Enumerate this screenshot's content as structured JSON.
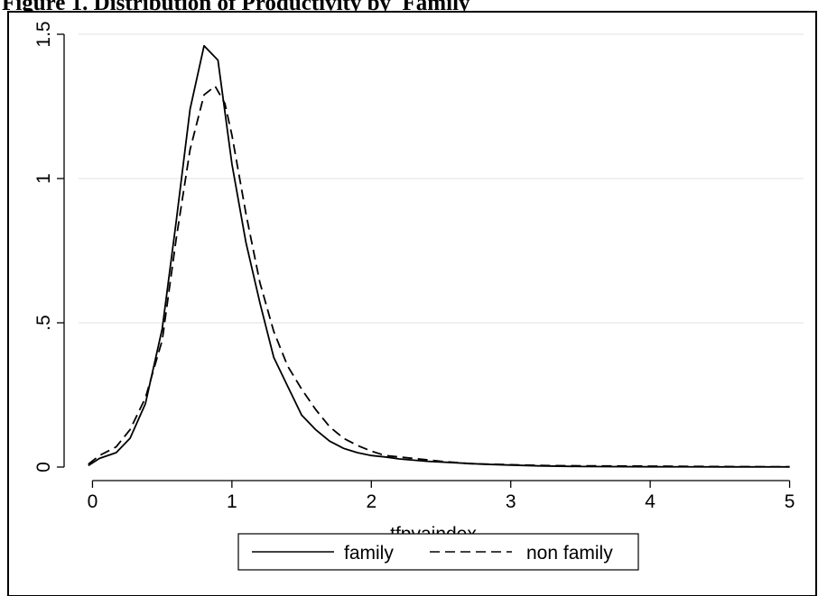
{
  "figure_title": "Figure 1. Distribution of Productivity by  Family",
  "chart_data": {
    "type": "line",
    "title": "",
    "xlabel": "tfpvaindex",
    "ylabel": "",
    "xlim": [
      -0.1,
      5.1
    ],
    "ylim": [
      0,
      1.5
    ],
    "xticks": [
      0,
      1,
      2,
      3,
      4,
      5
    ],
    "xtick_labels": [
      "0",
      "1",
      "2",
      "3",
      "4",
      "5"
    ],
    "yticks": [
      0,
      0.5,
      1,
      1.5
    ],
    "ytick_labels": [
      "0",
      ".5",
      "1",
      "1.5"
    ],
    "grid": true,
    "legend_position": "bottom",
    "series": [
      {
        "name": "family",
        "line_style": "solid",
        "color": "#000000",
        "x": [
          -0.03,
          0.05,
          0.17,
          0.27,
          0.38,
          0.5,
          0.6,
          0.7,
          0.8,
          0.9,
          1.0,
          1.1,
          1.2,
          1.3,
          1.4,
          1.5,
          1.6,
          1.7,
          1.8,
          1.9,
          2.0,
          2.1,
          2.2,
          2.4,
          2.6,
          2.8,
          3.0,
          3.2,
          3.5,
          4.0,
          4.5,
          5.0
        ],
        "y": [
          0.005,
          0.03,
          0.05,
          0.1,
          0.22,
          0.48,
          0.85,
          1.24,
          1.46,
          1.41,
          1.05,
          0.78,
          0.57,
          0.38,
          0.28,
          0.18,
          0.13,
          0.09,
          0.065,
          0.05,
          0.04,
          0.035,
          0.028,
          0.02,
          0.015,
          0.01,
          0.007,
          0.004,
          0.002,
          0.001,
          0.0005,
          0.0005
        ]
      },
      {
        "name": "non family",
        "line_style": "dashed",
        "color": "#000000",
        "x": [
          -0.03,
          0.05,
          0.17,
          0.27,
          0.38,
          0.5,
          0.6,
          0.7,
          0.8,
          0.88,
          0.95,
          1.0,
          1.1,
          1.2,
          1.3,
          1.4,
          1.5,
          1.6,
          1.7,
          1.8,
          1.9,
          2.0,
          2.1,
          2.3,
          2.5,
          2.7,
          3.0,
          3.3,
          3.6,
          4.0,
          4.5,
          5.0
        ],
        "y": [
          0.01,
          0.04,
          0.07,
          0.13,
          0.24,
          0.44,
          0.79,
          1.1,
          1.29,
          1.32,
          1.26,
          1.15,
          0.88,
          0.64,
          0.47,
          0.35,
          0.27,
          0.2,
          0.14,
          0.1,
          0.075,
          0.055,
          0.04,
          0.03,
          0.02,
          0.012,
          0.008,
          0.005,
          0.004,
          0.003,
          0.002,
          0.001
        ]
      }
    ]
  }
}
